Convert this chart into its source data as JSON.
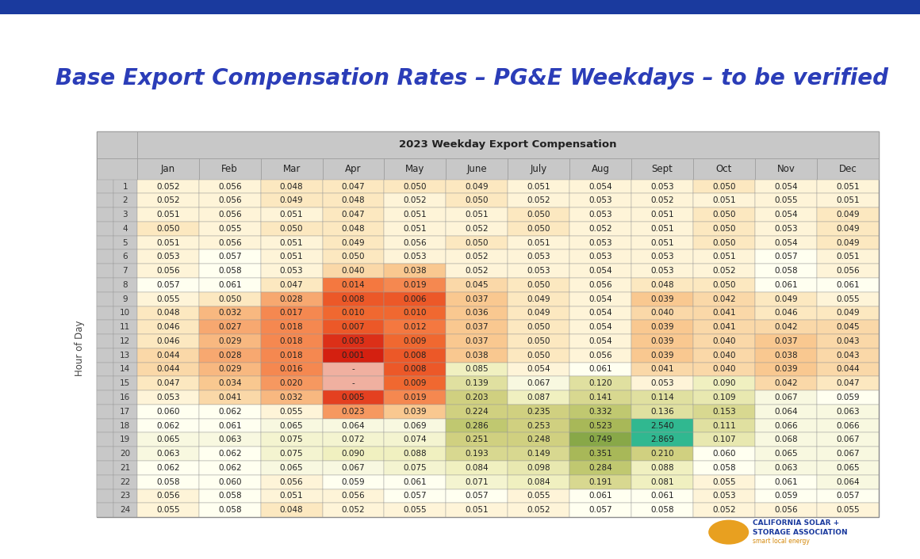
{
  "title": "Base Export Compensation Rates – PG&E Weekdays – to be verified",
  "table_title": "2023 Weekday Export Compensation",
  "col_labels": [
    "Jan",
    "Feb",
    "Mar",
    "Apr",
    "May",
    "June",
    "July",
    "Aug",
    "Sept",
    "Oct",
    "Nov",
    "Dec"
  ],
  "row_labels": [
    "1",
    "2",
    "3",
    "4",
    "5",
    "6",
    "7",
    "8",
    "9",
    "10",
    "11",
    "12",
    "13",
    "14",
    "15",
    "16",
    "17",
    "18",
    "19",
    "20",
    "21",
    "22",
    "23",
    "24"
  ],
  "ylabel": "Hour of Day",
  "data": [
    [
      0.052,
      0.056,
      0.048,
      0.047,
      0.05,
      0.049,
      0.051,
      0.054,
      0.053,
      0.05,
      0.054,
      0.051
    ],
    [
      0.052,
      0.056,
      0.049,
      0.048,
      0.052,
      0.05,
      0.052,
      0.053,
      0.052,
      0.051,
      0.055,
      0.051
    ],
    [
      0.051,
      0.056,
      0.051,
      0.047,
      0.051,
      0.051,
      0.05,
      0.053,
      0.051,
      0.05,
      0.054,
      0.049
    ],
    [
      0.05,
      0.055,
      0.05,
      0.048,
      0.051,
      0.052,
      0.05,
      0.052,
      0.051,
      0.05,
      0.053,
      0.049
    ],
    [
      0.051,
      0.056,
      0.051,
      0.049,
      0.056,
      0.05,
      0.051,
      0.053,
      0.051,
      0.05,
      0.054,
      0.049
    ],
    [
      0.053,
      0.057,
      0.051,
      0.05,
      0.053,
      0.052,
      0.053,
      0.053,
      0.053,
      0.051,
      0.057,
      0.051
    ],
    [
      0.056,
      0.058,
      0.053,
      0.04,
      0.038,
      0.052,
      0.053,
      0.054,
      0.053,
      0.052,
      0.058,
      0.056
    ],
    [
      0.057,
      0.061,
      0.047,
      0.014,
      0.019,
      0.045,
      0.05,
      0.056,
      0.048,
      0.05,
      0.061,
      0.061
    ],
    [
      0.055,
      0.05,
      0.028,
      0.008,
      0.006,
      0.037,
      0.049,
      0.054,
      0.039,
      0.042,
      0.049,
      0.055
    ],
    [
      0.048,
      0.032,
      0.017,
      0.01,
      0.01,
      0.036,
      0.049,
      0.054,
      0.04,
      0.041,
      0.046,
      0.049
    ],
    [
      0.046,
      0.027,
      0.018,
      0.007,
      0.012,
      0.037,
      0.05,
      0.054,
      0.039,
      0.041,
      0.042,
      0.045
    ],
    [
      0.046,
      0.029,
      0.018,
      0.003,
      0.009,
      0.037,
      0.05,
      0.054,
      0.039,
      0.04,
      0.037,
      0.043
    ],
    [
      0.044,
      0.028,
      0.018,
      0.001,
      0.008,
      0.038,
      0.05,
      0.056,
      0.039,
      0.04,
      0.038,
      0.043
    ],
    [
      0.044,
      0.029,
      0.016,
      null,
      0.008,
      0.085,
      0.054,
      0.061,
      0.041,
      0.04,
      0.039,
      0.044
    ],
    [
      0.047,
      0.034,
      0.02,
      null,
      0.009,
      0.139,
      0.067,
      0.12,
      0.053,
      0.09,
      0.042,
      0.047
    ],
    [
      0.053,
      0.041,
      0.032,
      0.005,
      0.019,
      0.203,
      0.087,
      0.141,
      0.114,
      0.109,
      0.067,
      0.059
    ],
    [
      0.06,
      0.062,
      0.055,
      0.023,
      0.039,
      0.224,
      0.235,
      0.332,
      0.136,
      0.153,
      0.064,
      0.063
    ],
    [
      0.062,
      0.061,
      0.065,
      0.064,
      0.069,
      0.286,
      0.253,
      0.523,
      2.54,
      0.111,
      0.066,
      0.066
    ],
    [
      0.065,
      0.063,
      0.075,
      0.072,
      0.074,
      0.251,
      0.248,
      0.749,
      2.869,
      0.107,
      0.068,
      0.067
    ],
    [
      0.063,
      0.062,
      0.075,
      0.09,
      0.088,
      0.193,
      0.149,
      0.351,
      0.21,
      0.06,
      0.065,
      0.067
    ],
    [
      0.062,
      0.062,
      0.065,
      0.067,
      0.075,
      0.084,
      0.098,
      0.284,
      0.088,
      0.058,
      0.063,
      0.065
    ],
    [
      0.058,
      0.06,
      0.056,
      0.059,
      0.061,
      0.071,
      0.084,
      0.191,
      0.081,
      0.055,
      0.061,
      0.064
    ],
    [
      0.056,
      0.058,
      0.051,
      0.056,
      0.057,
      0.057,
      0.055,
      0.061,
      0.061,
      0.053,
      0.059,
      0.057
    ],
    [
      0.055,
      0.058,
      0.048,
      0.052,
      0.055,
      0.051,
      0.052,
      0.057,
      0.058,
      0.052,
      0.056,
      0.055
    ]
  ],
  "background_color": "#ffffff",
  "title_color": "#2b3db8",
  "header_bg": "#c8c8c8",
  "border_color": "#999999",
  "text_color": "#333333",
  "top_bar_color": "#1a3a9e",
  "logo_text_color": "#d4880a",
  "logo_blue_color": "#1a3a9e"
}
